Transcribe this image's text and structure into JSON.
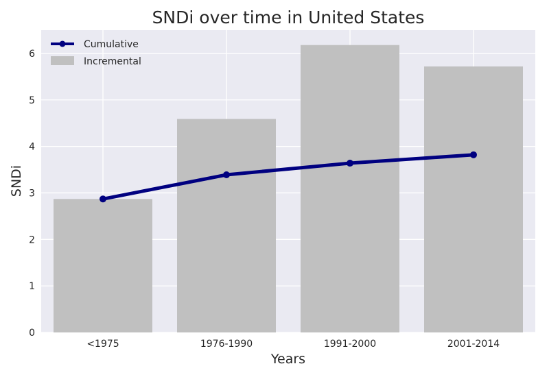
{
  "chart_data": {
    "type": "bar",
    "title": "SNDi over time in United States",
    "xlabel": "Years",
    "ylabel": "SNDi",
    "categories": [
      "<1975",
      "1976-1990",
      "1991-2000",
      "2001-2014"
    ],
    "ylim": [
      0,
      6.5
    ],
    "yticks": [
      0,
      1,
      2,
      3,
      4,
      5,
      6
    ],
    "grid": true,
    "legend": "top-left",
    "series": [
      {
        "name": "Cumulative",
        "type": "line",
        "color": "#000080",
        "values": [
          2.87,
          3.39,
          3.64,
          3.82
        ]
      },
      {
        "name": "Incremental",
        "type": "bar",
        "color": "#c0c0c0",
        "values": [
          2.87,
          4.59,
          6.18,
          5.72
        ]
      }
    ],
    "background_color": "#eaeaf2"
  }
}
